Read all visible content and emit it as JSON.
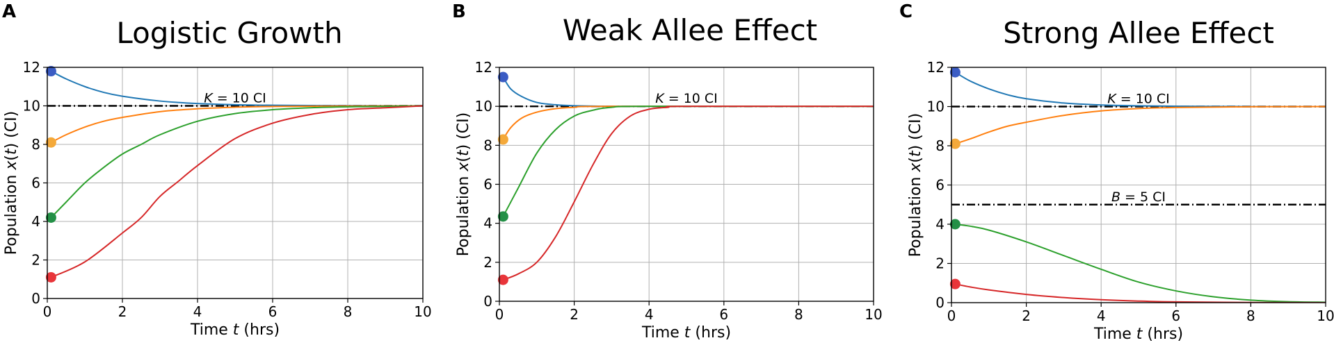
{
  "chart_data": [
    {
      "panel": "A",
      "type": "line",
      "title": "Logistic Growth",
      "xlabel": "Time t (hrs)",
      "ylabel": "Population x(t) (CI)",
      "xlim": [
        0,
        10
      ],
      "ylim": [
        0,
        12
      ],
      "xticks": [
        0,
        2,
        4,
        6,
        8,
        10
      ],
      "yticks": [
        0,
        2,
        4,
        6,
        8,
        10,
        12
      ],
      "grid": true,
      "reference_lines": [
        {
          "y": 10,
          "label": "K = 10 CI",
          "label_x": 5.0
        }
      ],
      "series": [
        {
          "color": "#1f77b4",
          "marker_color": "#3b5cc4",
          "x": [
            0.1,
            0.5,
            1,
            1.5,
            2,
            3,
            4,
            5,
            6,
            8,
            10
          ],
          "y": [
            11.8,
            11.4,
            11.0,
            10.7,
            10.5,
            10.25,
            10.12,
            10.06,
            10.03,
            10.01,
            10.0
          ]
        },
        {
          "color": "#ff7f0e",
          "marker_color": "#f4a93a",
          "x": [
            0.1,
            0.5,
            1,
            1.5,
            2,
            3,
            4,
            5,
            6,
            8,
            10
          ],
          "y": [
            8.1,
            8.5,
            8.9,
            9.2,
            9.4,
            9.7,
            9.85,
            9.93,
            9.97,
            9.99,
            10.0
          ]
        },
        {
          "color": "#2ca02c",
          "marker_color": "#239046",
          "x": [
            0.1,
            0.5,
            1,
            1.5,
            2,
            2.5,
            3,
            4,
            5,
            6,
            7,
            8,
            10
          ],
          "y": [
            4.2,
            5.0,
            6.0,
            6.8,
            7.5,
            8.0,
            8.5,
            9.2,
            9.6,
            9.8,
            9.9,
            9.95,
            10.0
          ]
        },
        {
          "color": "#d62728",
          "marker_color": "#e8353a",
          "x": [
            0.1,
            1,
            2,
            2.5,
            3,
            3.5,
            4,
            5,
            6,
            7,
            8,
            9,
            10
          ],
          "y": [
            1.1,
            1.9,
            3.4,
            4.2,
            5.3,
            6.1,
            6.9,
            8.3,
            9.1,
            9.55,
            9.8,
            9.9,
            10.0
          ]
        }
      ]
    },
    {
      "panel": "B",
      "type": "line",
      "title": "Weak Allee Effect",
      "xlabel": "Time t (hrs)",
      "ylabel": "Population x(t) (CI)",
      "xlim": [
        0,
        10
      ],
      "ylim": [
        0,
        12
      ],
      "xticks": [
        0,
        2,
        4,
        6,
        8,
        10
      ],
      "yticks": [
        0,
        2,
        4,
        6,
        8,
        10,
        12
      ],
      "grid": true,
      "reference_lines": [
        {
          "y": 10,
          "label": "K = 10 CI",
          "label_x": 5.0
        }
      ],
      "series": [
        {
          "color": "#1f77b4",
          "marker_color": "#3b5cc4",
          "x": [
            0.1,
            0.3,
            0.6,
            1,
            1.5,
            2,
            3,
            4,
            10
          ],
          "y": [
            11.5,
            10.9,
            10.5,
            10.2,
            10.08,
            10.03,
            10.0,
            10.0,
            10.0
          ]
        },
        {
          "color": "#ff7f0e",
          "marker_color": "#f4a93a",
          "x": [
            0.1,
            0.3,
            0.6,
            1,
            1.5,
            2,
            3,
            10
          ],
          "y": [
            8.3,
            8.9,
            9.4,
            9.7,
            9.88,
            9.95,
            10.0,
            10.0
          ]
        },
        {
          "color": "#2ca02c",
          "marker_color": "#239046",
          "x": [
            0.1,
            0.5,
            1,
            1.5,
            2,
            2.5,
            3,
            4,
            10
          ],
          "y": [
            4.35,
            5.8,
            7.6,
            8.8,
            9.5,
            9.8,
            9.95,
            10.0,
            10.0
          ]
        },
        {
          "color": "#d62728",
          "marker_color": "#e8353a",
          "x": [
            0.1,
            0.5,
            1,
            1.5,
            2,
            2.5,
            3,
            3.5,
            4,
            4.5,
            5,
            10
          ],
          "y": [
            1.1,
            1.4,
            2.0,
            3.3,
            5.1,
            7.0,
            8.6,
            9.5,
            9.85,
            9.95,
            10.0,
            10.0
          ]
        }
      ]
    },
    {
      "panel": "C",
      "type": "line",
      "title": "Strong Allee Effect",
      "xlabel": "Time t (hrs)",
      "ylabel": "Population x(t) (CI)",
      "xlim": [
        0,
        10
      ],
      "ylim": [
        0,
        12
      ],
      "xticks": [
        0,
        2,
        4,
        6,
        8,
        10
      ],
      "yticks": [
        0,
        2,
        4,
        6,
        8,
        10,
        12
      ],
      "grid": true,
      "reference_lines": [
        {
          "y": 10,
          "label": "K = 10 CI",
          "label_x": 5.0
        },
        {
          "y": 5,
          "label": "B = 5 CI",
          "label_x": 5.0
        }
      ],
      "series": [
        {
          "color": "#1f77b4",
          "marker_color": "#3b5cc4",
          "x": [
            0.1,
            0.5,
            1,
            1.5,
            2,
            3,
            4,
            5,
            6,
            8,
            10
          ],
          "y": [
            11.75,
            11.3,
            10.9,
            10.6,
            10.4,
            10.18,
            10.08,
            10.04,
            10.02,
            10.0,
            10.0
          ]
        },
        {
          "color": "#ff7f0e",
          "marker_color": "#f4a93a",
          "x": [
            0.1,
            0.5,
            1,
            1.5,
            2,
            3,
            4,
            5,
            6,
            8,
            10
          ],
          "y": [
            8.1,
            8.35,
            8.7,
            9.0,
            9.2,
            9.55,
            9.78,
            9.9,
            9.95,
            9.99,
            10.0
          ]
        },
        {
          "color": "#2ca02c",
          "marker_color": "#239046",
          "x": [
            0.1,
            0.5,
            1,
            2,
            3,
            4,
            5,
            6,
            7,
            8,
            9,
            10
          ],
          "y": [
            4.0,
            3.9,
            3.7,
            3.1,
            2.4,
            1.7,
            1.05,
            0.6,
            0.3,
            0.13,
            0.05,
            0.02
          ]
        },
        {
          "color": "#d62728",
          "marker_color": "#e8353a",
          "x": [
            0.1,
            0.5,
            1,
            2,
            3,
            4,
            5,
            6,
            8,
            10
          ],
          "y": [
            0.95,
            0.8,
            0.65,
            0.42,
            0.26,
            0.15,
            0.08,
            0.04,
            0.01,
            0.0
          ]
        }
      ]
    }
  ]
}
